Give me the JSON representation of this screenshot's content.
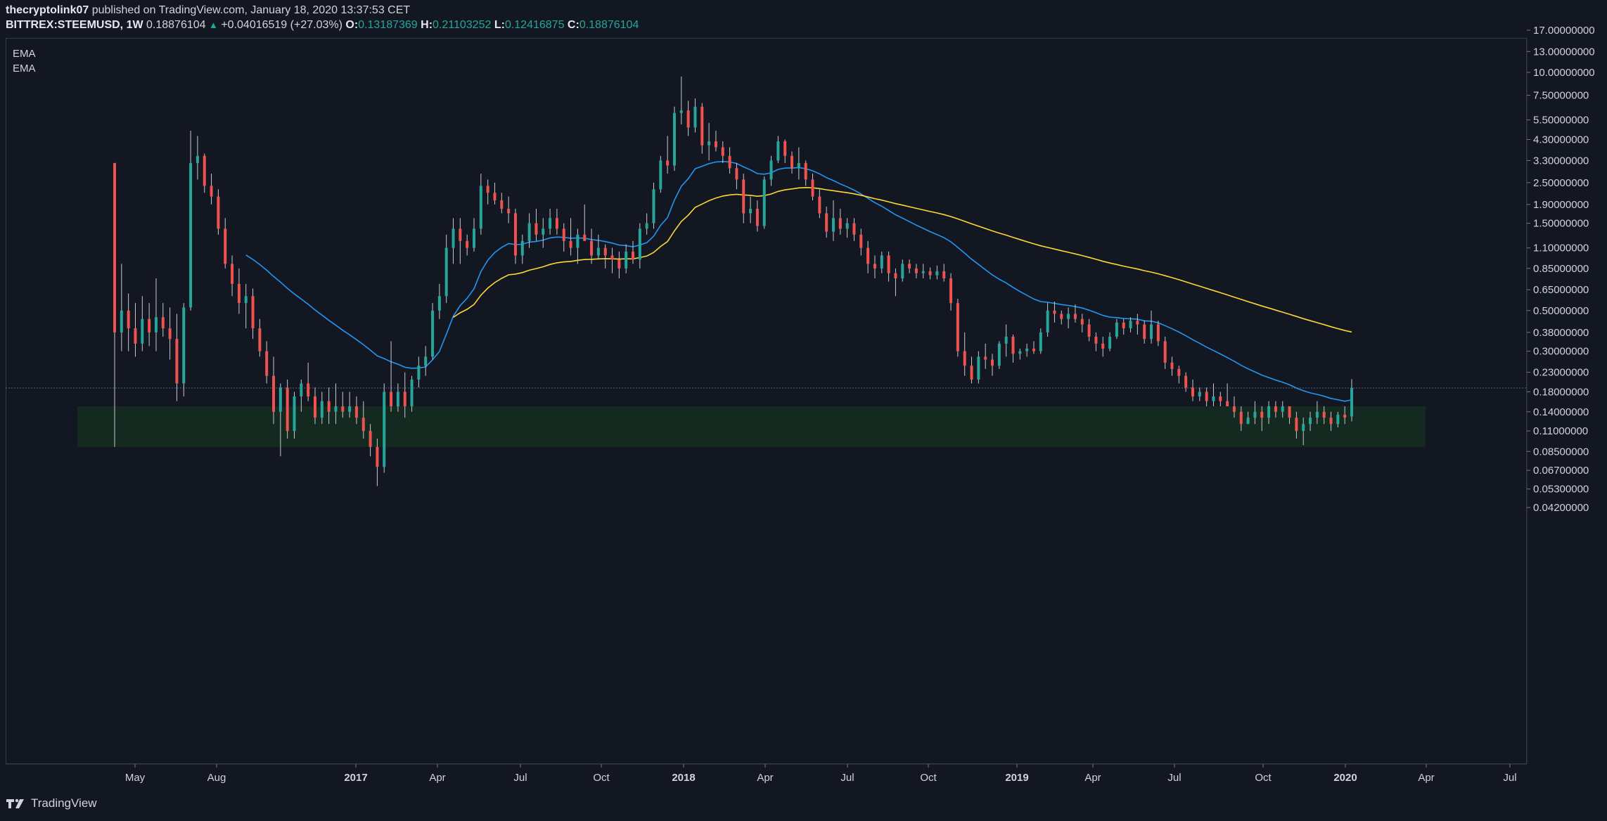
{
  "header": {
    "author": "thecryptolink07",
    "published_text": "published on TradingView.com, January 18, 2020 13:37:53 CET",
    "symbol": "BITTREX:STEEMUSD, 1W",
    "last_price": "0.18876104",
    "change": "+0.04016519 (+27.03%)",
    "open_label": "O:",
    "open": "0.13187369",
    "high_label": "H:",
    "high": "0.21103252",
    "low_label": "L:",
    "low": "0.12416875",
    "close_label": "C:",
    "close": "0.18876104"
  },
  "legend": [
    "EMA",
    "EMA"
  ],
  "footer": {
    "brand": "TradingView"
  },
  "colors": {
    "background": "#131722",
    "up": "#26a69a",
    "down": "#ef5350",
    "ema_fast": "#2196f3",
    "ema_slow": "#fdd835",
    "support_zone": "#14291f",
    "current_price_line": "#4a6a8a"
  },
  "chart_data": {
    "type": "candlestick",
    "y_scale": "log",
    "y_ticks": [
      "17.00000000",
      "13.00000000",
      "10.00000000",
      "7.50000000",
      "5.50000000",
      "4.30000000",
      "3.30000000",
      "2.50000000",
      "1.90000000",
      "1.50000000",
      "1.10000000",
      "0.85000000",
      "0.65000000",
      "0.50000000",
      "0.38000000",
      "0.30000000",
      "0.23000000",
      "0.18000000",
      "0.14000000",
      "0.11000000",
      "0.08500000",
      "0.06700000",
      "0.05300000",
      "0.04200000"
    ],
    "y_tick_values": [
      17,
      13,
      10,
      7.5,
      5.5,
      4.3,
      3.3,
      2.5,
      1.9,
      1.5,
      1.1,
      0.85,
      0.65,
      0.5,
      0.38,
      0.3,
      0.23,
      0.18,
      0.14,
      0.11,
      0.085,
      0.067,
      0.053,
      0.042
    ],
    "x_ticks": [
      {
        "label": "May",
        "bold": false
      },
      {
        "label": "Aug",
        "bold": false
      },
      {
        "label": "2017",
        "bold": true
      },
      {
        "label": "Apr",
        "bold": false
      },
      {
        "label": "Jul",
        "bold": false
      },
      {
        "label": "Oct",
        "bold": false
      },
      {
        "label": "2018",
        "bold": true
      },
      {
        "label": "Apr",
        "bold": false
      },
      {
        "label": "Jul",
        "bold": false
      },
      {
        "label": "Oct",
        "bold": false
      },
      {
        "label": "2019",
        "bold": true
      },
      {
        "label": "Apr",
        "bold": false
      },
      {
        "label": "Jul",
        "bold": false
      },
      {
        "label": "Oct",
        "bold": false
      },
      {
        "label": "2020",
        "bold": true
      },
      {
        "label": "Apr",
        "bold": false
      },
      {
        "label": "Jul",
        "bold": false
      }
    ],
    "current_price": 0.18876104,
    "support_zone": {
      "low": 0.09,
      "high": 0.15
    },
    "candles": [
      {
        "o": 3.2,
        "h": 3.2,
        "l": 0.09,
        "c": 0.38
      },
      {
        "o": 0.38,
        "h": 0.9,
        "l": 0.3,
        "c": 0.5
      },
      {
        "o": 0.5,
        "h": 0.62,
        "l": 0.3,
        "c": 0.4
      },
      {
        "o": 0.4,
        "h": 0.55,
        "l": 0.28,
        "c": 0.33
      },
      {
        "o": 0.33,
        "h": 0.6,
        "l": 0.3,
        "c": 0.45
      },
      {
        "o": 0.45,
        "h": 0.55,
        "l": 0.32,
        "c": 0.38
      },
      {
        "o": 0.38,
        "h": 0.75,
        "l": 0.3,
        "c": 0.46
      },
      {
        "o": 0.46,
        "h": 0.55,
        "l": 0.36,
        "c": 0.4
      },
      {
        "o": 0.4,
        "h": 0.52,
        "l": 0.27,
        "c": 0.35
      },
      {
        "o": 0.35,
        "h": 0.48,
        "l": 0.16,
        "c": 0.2
      },
      {
        "o": 0.2,
        "h": 0.55,
        "l": 0.17,
        "c": 0.52
      },
      {
        "o": 0.52,
        "h": 4.8,
        "l": 0.5,
        "c": 3.2
      },
      {
        "o": 3.2,
        "h": 4.5,
        "l": 2.6,
        "c": 3.5
      },
      {
        "o": 3.5,
        "h": 3.6,
        "l": 2.2,
        "c": 2.4
      },
      {
        "o": 2.4,
        "h": 2.8,
        "l": 1.9,
        "c": 2.1
      },
      {
        "o": 2.1,
        "h": 2.3,
        "l": 1.3,
        "c": 1.4
      },
      {
        "o": 1.4,
        "h": 1.6,
        "l": 0.85,
        "c": 0.9
      },
      {
        "o": 0.9,
        "h": 1.0,
        "l": 0.6,
        "c": 0.7
      },
      {
        "o": 0.7,
        "h": 0.85,
        "l": 0.48,
        "c": 0.55
      },
      {
        "o": 0.55,
        "h": 0.7,
        "l": 0.4,
        "c": 0.6
      },
      {
        "o": 0.6,
        "h": 0.66,
        "l": 0.35,
        "c": 0.4
      },
      {
        "o": 0.4,
        "h": 0.45,
        "l": 0.28,
        "c": 0.3
      },
      {
        "o": 0.3,
        "h": 0.34,
        "l": 0.2,
        "c": 0.22
      },
      {
        "o": 0.22,
        "h": 0.28,
        "l": 0.12,
        "c": 0.14
      },
      {
        "o": 0.14,
        "h": 0.2,
        "l": 0.08,
        "c": 0.19
      },
      {
        "o": 0.19,
        "h": 0.21,
        "l": 0.1,
        "c": 0.11
      },
      {
        "o": 0.11,
        "h": 0.18,
        "l": 0.1,
        "c": 0.17
      },
      {
        "o": 0.17,
        "h": 0.21,
        "l": 0.14,
        "c": 0.2
      },
      {
        "o": 0.2,
        "h": 0.26,
        "l": 0.16,
        "c": 0.17
      },
      {
        "o": 0.17,
        "h": 0.19,
        "l": 0.12,
        "c": 0.13
      },
      {
        "o": 0.13,
        "h": 0.18,
        "l": 0.12,
        "c": 0.16
      },
      {
        "o": 0.16,
        "h": 0.19,
        "l": 0.12,
        "c": 0.14
      },
      {
        "o": 0.14,
        "h": 0.2,
        "l": 0.12,
        "c": 0.15
      },
      {
        "o": 0.15,
        "h": 0.18,
        "l": 0.13,
        "c": 0.14
      },
      {
        "o": 0.14,
        "h": 0.18,
        "l": 0.13,
        "c": 0.15
      },
      {
        "o": 0.15,
        "h": 0.17,
        "l": 0.12,
        "c": 0.13
      },
      {
        "o": 0.13,
        "h": 0.16,
        "l": 0.1,
        "c": 0.11
      },
      {
        "o": 0.11,
        "h": 0.12,
        "l": 0.08,
        "c": 0.09
      },
      {
        "o": 0.09,
        "h": 0.1,
        "l": 0.055,
        "c": 0.07
      },
      {
        "o": 0.07,
        "h": 0.2,
        "l": 0.065,
        "c": 0.18
      },
      {
        "o": 0.18,
        "h": 0.34,
        "l": 0.14,
        "c": 0.15
      },
      {
        "o": 0.15,
        "h": 0.2,
        "l": 0.14,
        "c": 0.18
      },
      {
        "o": 0.18,
        "h": 0.23,
        "l": 0.13,
        "c": 0.15
      },
      {
        "o": 0.15,
        "h": 0.22,
        "l": 0.14,
        "c": 0.21
      },
      {
        "o": 0.21,
        "h": 0.28,
        "l": 0.19,
        "c": 0.25
      },
      {
        "o": 0.25,
        "h": 0.32,
        "l": 0.22,
        "c": 0.28
      },
      {
        "o": 0.28,
        "h": 0.55,
        "l": 0.27,
        "c": 0.5
      },
      {
        "o": 0.5,
        "h": 0.7,
        "l": 0.45,
        "c": 0.6
      },
      {
        "o": 0.6,
        "h": 1.3,
        "l": 0.55,
        "c": 1.1
      },
      {
        "o": 1.1,
        "h": 1.6,
        "l": 0.9,
        "c": 1.4
      },
      {
        "o": 1.4,
        "h": 1.6,
        "l": 0.9,
        "c": 1.2
      },
      {
        "o": 1.2,
        "h": 1.3,
        "l": 1.0,
        "c": 1.1
      },
      {
        "o": 1.1,
        "h": 1.6,
        "l": 1.05,
        "c": 1.4
      },
      {
        "o": 1.4,
        "h": 2.8,
        "l": 1.3,
        "c": 2.4
      },
      {
        "o": 2.4,
        "h": 2.6,
        "l": 1.9,
        "c": 2.2
      },
      {
        "o": 2.2,
        "h": 2.5,
        "l": 1.9,
        "c": 2.0
      },
      {
        "o": 2.0,
        "h": 2.2,
        "l": 1.7,
        "c": 1.8
      },
      {
        "o": 1.8,
        "h": 2.1,
        "l": 1.5,
        "c": 1.7
      },
      {
        "o": 1.7,
        "h": 1.8,
        "l": 0.9,
        "c": 1.0
      },
      {
        "o": 1.0,
        "h": 1.3,
        "l": 0.9,
        "c": 1.2
      },
      {
        "o": 1.2,
        "h": 1.7,
        "l": 1.1,
        "c": 1.5
      },
      {
        "o": 1.5,
        "h": 1.8,
        "l": 1.2,
        "c": 1.3
      },
      {
        "o": 1.3,
        "h": 1.6,
        "l": 1.1,
        "c": 1.4
      },
      {
        "o": 1.4,
        "h": 1.8,
        "l": 1.3,
        "c": 1.6
      },
      {
        "o": 1.6,
        "h": 1.8,
        "l": 1.3,
        "c": 1.4
      },
      {
        "o": 1.4,
        "h": 1.5,
        "l": 1.05,
        "c": 1.2
      },
      {
        "o": 1.2,
        "h": 1.6,
        "l": 1.0,
        "c": 1.1
      },
      {
        "o": 1.1,
        "h": 1.4,
        "l": 0.9,
        "c": 1.3
      },
      {
        "o": 1.3,
        "h": 1.9,
        "l": 1.2,
        "c": 1.2
      },
      {
        "o": 1.2,
        "h": 1.4,
        "l": 0.9,
        "c": 1.0
      },
      {
        "o": 1.0,
        "h": 1.3,
        "l": 0.95,
        "c": 1.1
      },
      {
        "o": 1.1,
        "h": 1.15,
        "l": 0.85,
        "c": 1.0
      },
      {
        "o": 1.0,
        "h": 1.1,
        "l": 0.8,
        "c": 0.95
      },
      {
        "o": 0.95,
        "h": 1.05,
        "l": 0.75,
        "c": 0.85
      },
      {
        "o": 0.85,
        "h": 1.15,
        "l": 0.8,
        "c": 1.05
      },
      {
        "o": 1.05,
        "h": 1.2,
        "l": 0.9,
        "c": 0.95
      },
      {
        "o": 0.95,
        "h": 1.5,
        "l": 0.85,
        "c": 1.4
      },
      {
        "o": 1.4,
        "h": 1.7,
        "l": 1.3,
        "c": 1.5
      },
      {
        "o": 1.5,
        "h": 2.5,
        "l": 1.4,
        "c": 2.3
      },
      {
        "o": 2.3,
        "h": 3.5,
        "l": 2.2,
        "c": 3.3
      },
      {
        "o": 3.3,
        "h": 4.5,
        "l": 2.8,
        "c": 3.1
      },
      {
        "o": 3.1,
        "h": 6.5,
        "l": 2.9,
        "c": 6.0
      },
      {
        "o": 6.0,
        "h": 9.5,
        "l": 5.2,
        "c": 6.2
      },
      {
        "o": 6.2,
        "h": 7.0,
        "l": 4.5,
        "c": 5.0
      },
      {
        "o": 5.0,
        "h": 7.2,
        "l": 4.7,
        "c": 6.5
      },
      {
        "o": 6.5,
        "h": 6.8,
        "l": 3.6,
        "c": 4.0
      },
      {
        "o": 4.0,
        "h": 5.3,
        "l": 3.3,
        "c": 4.2
      },
      {
        "o": 4.2,
        "h": 4.8,
        "l": 3.7,
        "c": 3.9
      },
      {
        "o": 3.9,
        "h": 4.2,
        "l": 3.2,
        "c": 3.5
      },
      {
        "o": 3.5,
        "h": 3.9,
        "l": 2.8,
        "c": 3.0
      },
      {
        "o": 3.0,
        "h": 3.2,
        "l": 2.3,
        "c": 2.6
      },
      {
        "o": 2.6,
        "h": 2.8,
        "l": 1.5,
        "c": 1.7
      },
      {
        "o": 1.7,
        "h": 2.1,
        "l": 1.5,
        "c": 1.8
      },
      {
        "o": 1.8,
        "h": 2.0,
        "l": 1.35,
        "c": 1.45
      },
      {
        "o": 1.45,
        "h": 2.7,
        "l": 1.4,
        "c": 2.6
      },
      {
        "o": 2.6,
        "h": 3.5,
        "l": 2.4,
        "c": 3.3
      },
      {
        "o": 3.3,
        "h": 4.5,
        "l": 3.2,
        "c": 4.2
      },
      {
        "o": 4.2,
        "h": 4.3,
        "l": 3.2,
        "c": 3.5
      },
      {
        "o": 3.5,
        "h": 3.7,
        "l": 2.8,
        "c": 3.0
      },
      {
        "o": 3.0,
        "h": 3.9,
        "l": 2.6,
        "c": 3.2
      },
      {
        "o": 3.2,
        "h": 3.3,
        "l": 2.4,
        "c": 2.6
      },
      {
        "o": 2.6,
        "h": 2.8,
        "l": 2.0,
        "c": 2.1
      },
      {
        "o": 2.1,
        "h": 2.3,
        "l": 1.6,
        "c": 1.7
      },
      {
        "o": 1.7,
        "h": 1.85,
        "l": 1.25,
        "c": 1.35
      },
      {
        "o": 1.35,
        "h": 2.0,
        "l": 1.2,
        "c": 1.6
      },
      {
        "o": 1.6,
        "h": 1.8,
        "l": 1.3,
        "c": 1.4
      },
      {
        "o": 1.4,
        "h": 1.6,
        "l": 1.25,
        "c": 1.5
      },
      {
        "o": 1.5,
        "h": 1.6,
        "l": 1.2,
        "c": 1.3
      },
      {
        "o": 1.3,
        "h": 1.4,
        "l": 1.0,
        "c": 1.1
      },
      {
        "o": 1.1,
        "h": 1.2,
        "l": 0.8,
        "c": 0.9
      },
      {
        "o": 0.9,
        "h": 1.0,
        "l": 0.75,
        "c": 0.85
      },
      {
        "o": 0.85,
        "h": 1.05,
        "l": 0.8,
        "c": 1.0
      },
      {
        "o": 1.0,
        "h": 1.05,
        "l": 0.72,
        "c": 0.8
      },
      {
        "o": 0.8,
        "h": 0.85,
        "l": 0.6,
        "c": 0.75
      },
      {
        "o": 0.75,
        "h": 0.95,
        "l": 0.72,
        "c": 0.9
      },
      {
        "o": 0.9,
        "h": 0.95,
        "l": 0.8,
        "c": 0.85
      },
      {
        "o": 0.85,
        "h": 0.9,
        "l": 0.75,
        "c": 0.8
      },
      {
        "o": 0.8,
        "h": 0.9,
        "l": 0.75,
        "c": 0.82
      },
      {
        "o": 0.82,
        "h": 0.86,
        "l": 0.74,
        "c": 0.78
      },
      {
        "o": 0.78,
        "h": 0.88,
        "l": 0.74,
        "c": 0.82
      },
      {
        "o": 0.82,
        "h": 0.9,
        "l": 0.72,
        "c": 0.75
      },
      {
        "o": 0.75,
        "h": 0.8,
        "l": 0.5,
        "c": 0.55
      },
      {
        "o": 0.55,
        "h": 0.58,
        "l": 0.28,
        "c": 0.3
      },
      {
        "o": 0.3,
        "h": 0.38,
        "l": 0.22,
        "c": 0.25
      },
      {
        "o": 0.25,
        "h": 0.28,
        "l": 0.2,
        "c": 0.21
      },
      {
        "o": 0.21,
        "h": 0.3,
        "l": 0.2,
        "c": 0.28
      },
      {
        "o": 0.28,
        "h": 0.33,
        "l": 0.24,
        "c": 0.27
      },
      {
        "o": 0.27,
        "h": 0.29,
        "l": 0.22,
        "c": 0.25
      },
      {
        "o": 0.25,
        "h": 0.34,
        "l": 0.24,
        "c": 0.33
      },
      {
        "o": 0.33,
        "h": 0.42,
        "l": 0.28,
        "c": 0.36
      },
      {
        "o": 0.36,
        "h": 0.37,
        "l": 0.26,
        "c": 0.29
      },
      {
        "o": 0.29,
        "h": 0.31,
        "l": 0.27,
        "c": 0.3
      },
      {
        "o": 0.3,
        "h": 0.33,
        "l": 0.28,
        "c": 0.31
      },
      {
        "o": 0.31,
        "h": 0.34,
        "l": 0.29,
        "c": 0.3
      },
      {
        "o": 0.3,
        "h": 0.4,
        "l": 0.29,
        "c": 0.38
      },
      {
        "o": 0.38,
        "h": 0.55,
        "l": 0.36,
        "c": 0.5
      },
      {
        "o": 0.5,
        "h": 0.56,
        "l": 0.43,
        "c": 0.48
      },
      {
        "o": 0.48,
        "h": 0.5,
        "l": 0.42,
        "c": 0.45
      },
      {
        "o": 0.45,
        "h": 0.52,
        "l": 0.4,
        "c": 0.48
      },
      {
        "o": 0.48,
        "h": 0.54,
        "l": 0.43,
        "c": 0.45
      },
      {
        "o": 0.45,
        "h": 0.48,
        "l": 0.38,
        "c": 0.42
      },
      {
        "o": 0.42,
        "h": 0.45,
        "l": 0.34,
        "c": 0.36
      },
      {
        "o": 0.36,
        "h": 0.38,
        "l": 0.3,
        "c": 0.33
      },
      {
        "o": 0.33,
        "h": 0.36,
        "l": 0.28,
        "c": 0.31
      },
      {
        "o": 0.31,
        "h": 0.38,
        "l": 0.3,
        "c": 0.36
      },
      {
        "o": 0.36,
        "h": 0.45,
        "l": 0.35,
        "c": 0.43
      },
      {
        "o": 0.43,
        "h": 0.45,
        "l": 0.37,
        "c": 0.4
      },
      {
        "o": 0.4,
        "h": 0.46,
        "l": 0.38,
        "c": 0.44
      },
      {
        "o": 0.44,
        "h": 0.48,
        "l": 0.37,
        "c": 0.42
      },
      {
        "o": 0.42,
        "h": 0.44,
        "l": 0.33,
        "c": 0.35
      },
      {
        "o": 0.35,
        "h": 0.5,
        "l": 0.33,
        "c": 0.42
      },
      {
        "o": 0.42,
        "h": 0.44,
        "l": 0.32,
        "c": 0.34
      },
      {
        "o": 0.34,
        "h": 0.36,
        "l": 0.24,
        "c": 0.26
      },
      {
        "o": 0.26,
        "h": 0.28,
        "l": 0.22,
        "c": 0.24
      },
      {
        "o": 0.24,
        "h": 0.25,
        "l": 0.2,
        "c": 0.22
      },
      {
        "o": 0.22,
        "h": 0.23,
        "l": 0.18,
        "c": 0.19
      },
      {
        "o": 0.19,
        "h": 0.21,
        "l": 0.16,
        "c": 0.17
      },
      {
        "o": 0.17,
        "h": 0.19,
        "l": 0.16,
        "c": 0.18
      },
      {
        "o": 0.18,
        "h": 0.19,
        "l": 0.15,
        "c": 0.16
      },
      {
        "o": 0.16,
        "h": 0.2,
        "l": 0.15,
        "c": 0.17
      },
      {
        "o": 0.17,
        "h": 0.18,
        "l": 0.15,
        "c": 0.16
      },
      {
        "o": 0.16,
        "h": 0.2,
        "l": 0.15,
        "c": 0.15
      },
      {
        "o": 0.15,
        "h": 0.17,
        "l": 0.13,
        "c": 0.14
      },
      {
        "o": 0.14,
        "h": 0.15,
        "l": 0.11,
        "c": 0.12
      },
      {
        "o": 0.12,
        "h": 0.14,
        "l": 0.12,
        "c": 0.13
      },
      {
        "o": 0.13,
        "h": 0.16,
        "l": 0.12,
        "c": 0.14
      },
      {
        "o": 0.14,
        "h": 0.15,
        "l": 0.11,
        "c": 0.13
      },
      {
        "o": 0.13,
        "h": 0.16,
        "l": 0.12,
        "c": 0.15
      },
      {
        "o": 0.15,
        "h": 0.16,
        "l": 0.13,
        "c": 0.14
      },
      {
        "o": 0.14,
        "h": 0.16,
        "l": 0.13,
        "c": 0.15
      },
      {
        "o": 0.15,
        "h": 0.15,
        "l": 0.12,
        "c": 0.13
      },
      {
        "o": 0.13,
        "h": 0.14,
        "l": 0.1,
        "c": 0.11
      },
      {
        "o": 0.11,
        "h": 0.13,
        "l": 0.092,
        "c": 0.12
      },
      {
        "o": 0.12,
        "h": 0.14,
        "l": 0.11,
        "c": 0.13
      },
      {
        "o": 0.13,
        "h": 0.16,
        "l": 0.12,
        "c": 0.14
      },
      {
        "o": 0.14,
        "h": 0.15,
        "l": 0.12,
        "c": 0.13
      },
      {
        "o": 0.13,
        "h": 0.14,
        "l": 0.11,
        "c": 0.12
      },
      {
        "o": 0.12,
        "h": 0.14,
        "l": 0.115,
        "c": 0.135
      },
      {
        "o": 0.135,
        "h": 0.15,
        "l": 0.12,
        "c": 0.13
      },
      {
        "o": 0.132,
        "h": 0.211,
        "l": 0.124,
        "c": 0.189
      }
    ],
    "ema_fast_start_index": 19,
    "ema_slow_start_index": 49
  }
}
